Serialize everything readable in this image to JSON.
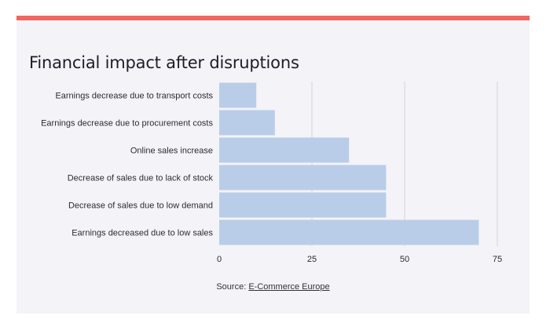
{
  "title": "Financial impact after disruptions",
  "source": {
    "label": "Source:",
    "link_text": "E-Commerce Europe"
  },
  "colors": {
    "accent": "#f1665f",
    "bar": "#b9cde8",
    "grid": "#d4d4d8",
    "background": "#f4f3f8"
  },
  "chart_data": {
    "type": "bar",
    "orientation": "horizontal",
    "title": "Financial impact after disruptions",
    "xlabel": "",
    "ylabel": "",
    "categories": [
      "Earnings decrease due to transport costs",
      "Earnings decrease due to procurement costs",
      "Online sales increase",
      "Decrease of sales due to lack of stock",
      "Decrease of sales due to low demand",
      "Earnings decreased due to low sales"
    ],
    "values": [
      10,
      15,
      35,
      45,
      45,
      70
    ],
    "xlim": [
      0,
      75
    ],
    "xticks": [
      0,
      25,
      50,
      75
    ],
    "grid": true,
    "legend": false
  }
}
